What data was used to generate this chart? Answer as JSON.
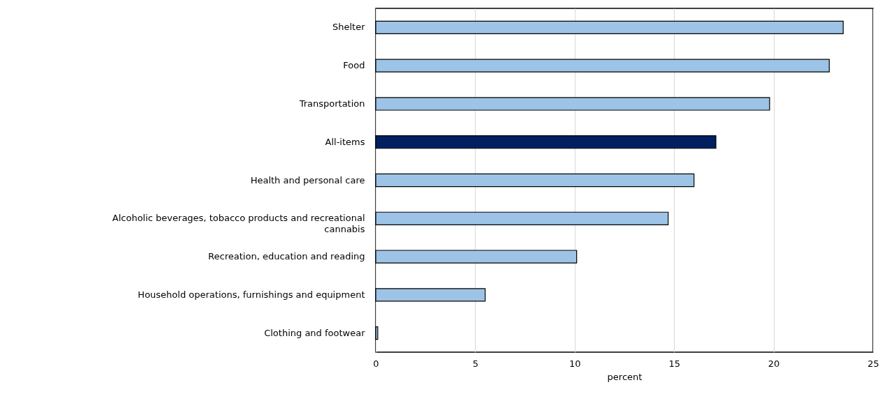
{
  "chart_data": {
    "type": "bar",
    "orientation": "horizontal",
    "xlabel": "percent",
    "categories": [
      "Shelter",
      "Food",
      "Transportation",
      "All-items",
      "Health and personal care",
      "Alcoholic beverages, tobacco products and recreational cannabis",
      "Recreation, education and reading",
      "Household operations, furnishings and equipment",
      "Clothing and footwear"
    ],
    "values": [
      23.5,
      22.8,
      19.8,
      17.1,
      16.0,
      14.7,
      10.1,
      5.5,
      0.1
    ],
    "colors": [
      "#9dc3e6",
      "#9dc3e6",
      "#9dc3e6",
      "#002060",
      "#9dc3e6",
      "#9dc3e6",
      "#9dc3e6",
      "#9dc3e6",
      "#9dc3e6"
    ],
    "xlim": [
      0,
      25
    ],
    "xticks": [
      0,
      5,
      10,
      15,
      20,
      25
    ],
    "grid": "x"
  }
}
